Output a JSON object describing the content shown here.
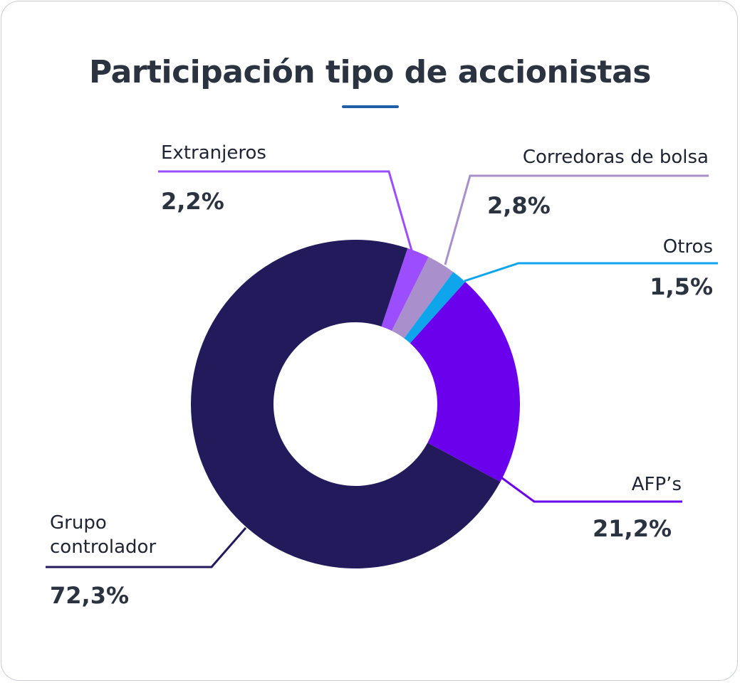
{
  "chart_data": {
    "type": "pie",
    "title": "Participación tipo de accionistas",
    "donut": true,
    "categories": [
      "Extranjeros",
      "Corredoras de bolsa",
      "Otros",
      "AFP’s",
      "Grupo controlador"
    ],
    "values": [
      2.2,
      2.8,
      1.5,
      21.2,
      72.3
    ],
    "value_labels": [
      "2,2%",
      "2,8%",
      "1,5%",
      "21,2%",
      "72,3%"
    ],
    "colors": [
      "#9b4dff",
      "#a98fcb",
      "#0ea5ec",
      "#6a00ec",
      "#231a5c"
    ],
    "legend": "none"
  }
}
